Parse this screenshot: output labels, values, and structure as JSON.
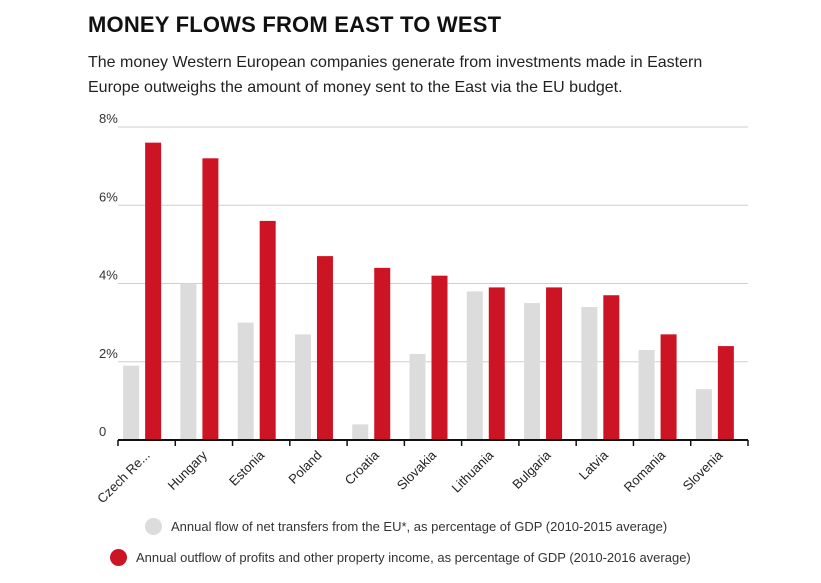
{
  "title": "MONEY FLOWS FROM EAST TO WEST",
  "subtitle": "The money Western European companies generate from investments made in Eastern Europe outweighs the amount of money sent to the East via the EU budget.",
  "chart_data": {
    "type": "bar",
    "categories": [
      "Czech Re...",
      "Hungary",
      "Estonia",
      "Poland",
      "Croatia",
      "Slovakia",
      "Lithuania",
      "Bulgaria",
      "Latvia",
      "Romania",
      "Slovenia"
    ],
    "series": [
      {
        "name": "Annual flow of net transfers from the EU*, as percentage of GDP (2010-2015 average)",
        "color": "#dcdcdc",
        "values": [
          1.9,
          4.0,
          3.0,
          2.7,
          0.4,
          2.2,
          3.8,
          3.5,
          3.4,
          2.3,
          1.3
        ]
      },
      {
        "name": "Annual outflow of profits and other property income, as percentage of GDP (2010-2016 average)",
        "color": "#cc1424",
        "values": [
          7.6,
          7.2,
          5.6,
          4.7,
          4.4,
          4.2,
          3.9,
          3.9,
          3.7,
          2.7,
          2.4
        ]
      }
    ],
    "ylim": [
      0,
      8
    ],
    "yticks": [
      0,
      2,
      4,
      6,
      8
    ],
    "ytick_labels": [
      "0",
      "2%",
      "4%",
      "6%",
      "8%"
    ],
    "grid": true,
    "legend_position": "bottom"
  }
}
